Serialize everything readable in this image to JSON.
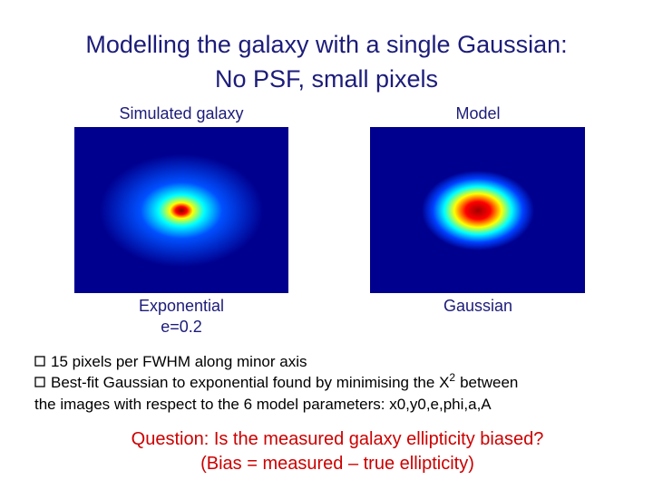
{
  "title": [
    "Modelling the galaxy with a single Gaussian:",
    "No PSF, small pixels"
  ],
  "panels": [
    {
      "label": "Simulated galaxy",
      "caption": [
        "Exponential",
        "e=0.2"
      ]
    },
    {
      "label": "Model",
      "caption": [
        "Gaussian"
      ]
    }
  ],
  "bullets": [
    {
      "text": "15 pixels per FWHM along minor axis"
    },
    {
      "text": "Best-fit Gaussian to exponential found by minimising the X",
      "superscript": "2",
      "text_after": "between",
      "continuation": "the images with respect to the 6 model parameters: x0,y0,e,phi,a,A"
    }
  ],
  "question": [
    "Question: Is the measured galaxy ellipticity biased?",
    "(Bias = measured – true ellipticity)"
  ]
}
